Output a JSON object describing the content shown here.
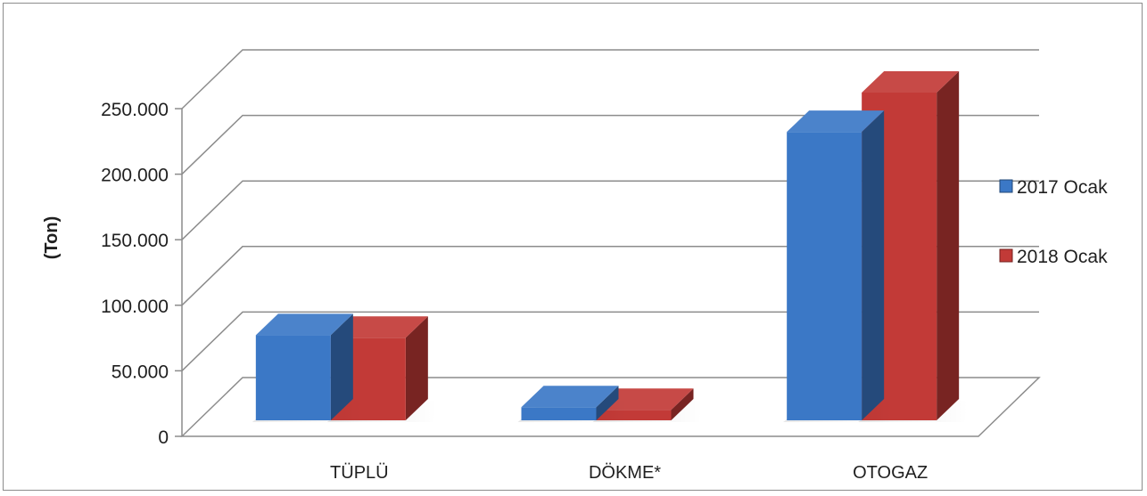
{
  "chart_data": {
    "type": "bar",
    "title": "",
    "xlabel": "",
    "ylabel": "(Ton)",
    "categories": [
      "TÜPLÜ",
      "DÖKME*",
      "OTOGAZ"
    ],
    "series": [
      {
        "name": "2017 Ocak",
        "values": [
          65000,
          10000,
          220000
        ],
        "color": "#3b78c6"
      },
      {
        "name": "2018 Ocak",
        "values": [
          63000,
          8000,
          250000
        ],
        "color": "#c23a37"
      }
    ],
    "ylim": [
      0,
      250000
    ],
    "ytick_values": [
      0,
      50000,
      100000,
      150000,
      200000,
      250000
    ],
    "ytick_labels": [
      "0",
      "50.000",
      "100.000",
      "150.000",
      "200.000",
      "250.000"
    ],
    "grid": true,
    "style": "3d-clustered-column",
    "legend": "right"
  }
}
